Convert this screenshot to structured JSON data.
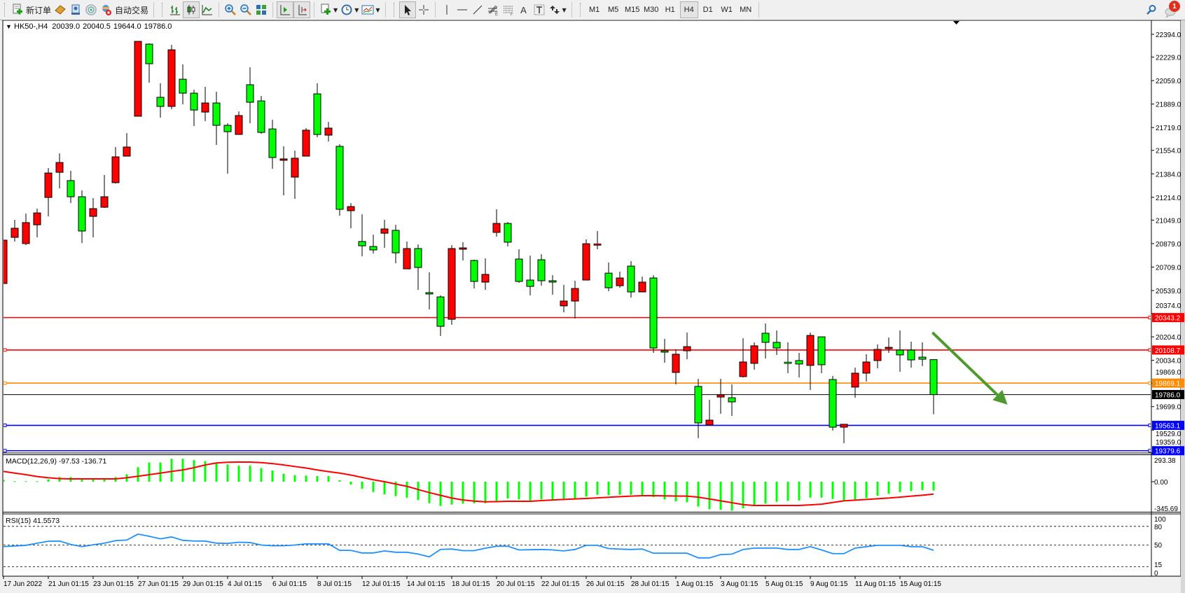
{
  "toolbar": {
    "new_order_label": "新订单",
    "autotrade_label": "自动交易",
    "icons": [
      "new-order-icon",
      "market-watch-icon",
      "navigator-icon",
      "signals-icon",
      "autotrade-icon",
      "bar-chart-icon",
      "candlestick-chart-icon",
      "line-chart-icon",
      "zoom-in-icon",
      "zoom-out-icon",
      "tile-windows-icon",
      "auto-scroll-icon",
      "chart-shift-icon",
      "indicators-icon",
      "periods-icon",
      "templates-icon",
      "cursor-icon",
      "crosshair-icon",
      "vertical-line-icon",
      "horizontal-line-icon",
      "trendline-icon",
      "fibonacci-icon",
      "fibonacci-fan-icon",
      "text-icon",
      "text-label-icon",
      "arrows-icon",
      "search-icon",
      "notifications-icon"
    ],
    "text_tool": "A",
    "timeframes": [
      "M1",
      "M5",
      "M15",
      "M30",
      "H1",
      "H4",
      "D1",
      "W1",
      "MN"
    ],
    "active_timeframe": "H4",
    "notification_count": "1"
  },
  "chart": {
    "symbol": "HK50-,H4",
    "open": "20039.0",
    "high": "20040.5",
    "low": "19644.0",
    "close": "19786.0"
  },
  "chart_data": {
    "type": "candlestick",
    "up_color": "#ff0000",
    "down_color": "#00ff00",
    "candles_ohlc": [
      [
        20590,
        20904,
        20590,
        20904
      ],
      [
        20924,
        21051,
        20894,
        20990
      ],
      [
        20879,
        21096,
        20868,
        21031
      ],
      [
        21015,
        21132,
        20924,
        21101
      ],
      [
        21213,
        21426,
        21076,
        21390
      ],
      [
        21395,
        21532,
        21279,
        21466
      ],
      [
        21335,
        21406,
        21172,
        21218
      ],
      [
        21218,
        21264,
        20883,
        20970
      ],
      [
        21076,
        21208,
        20924,
        21132
      ],
      [
        21142,
        21375,
        21137,
        21218
      ],
      [
        21320,
        21578,
        21314,
        21507
      ],
      [
        21512,
        21679,
        21512,
        21578
      ],
      [
        21801,
        22343,
        21801,
        22343
      ],
      [
        22323,
        22328,
        22044,
        22181
      ],
      [
        21938,
        22039,
        21791,
        21872
      ],
      [
        21872,
        22318,
        21852,
        22282
      ],
      [
        22069,
        22176,
        21887,
        21968
      ],
      [
        21968,
        21993,
        21730,
        21846
      ],
      [
        21831,
        22014,
        21765,
        21897
      ],
      [
        21897,
        21978,
        21593,
        21735
      ],
      [
        21735,
        21750,
        21385,
        21689
      ],
      [
        21669,
        21836,
        21669,
        21806
      ],
      [
        22029,
        22155,
        21750,
        21902
      ],
      [
        21912,
        21948,
        21674,
        21684
      ],
      [
        21709,
        21775,
        21421,
        21502
      ],
      [
        21482,
        21583,
        21228,
        21492
      ],
      [
        21360,
        21552,
        21203,
        21497
      ],
      [
        21512,
        21715,
        21512,
        21700
      ],
      [
        21963,
        22039,
        21649,
        21669
      ],
      [
        21664,
        21760,
        21618,
        21715
      ],
      [
        21583,
        21598,
        21081,
        21127
      ],
      [
        21117,
        21172,
        20990,
        21147
      ],
      [
        20894,
        21091,
        20787,
        20863
      ],
      [
        20858,
        20944,
        20807,
        20833
      ],
      [
        20954,
        21051,
        20848,
        20985
      ],
      [
        20975,
        21015,
        20736,
        20812
      ],
      [
        20696,
        20894,
        20696,
        20843
      ],
      [
        20843,
        20873,
        20544,
        20706
      ],
      [
        20524,
        20671,
        20402,
        20514
      ],
      [
        20493,
        20504,
        20210,
        20280
      ],
      [
        20331,
        20868,
        20291,
        20843
      ],
      [
        20838,
        20889,
        20757,
        20848
      ],
      [
        20757,
        20762,
        20554,
        20605
      ],
      [
        20600,
        20772,
        20544,
        20656
      ],
      [
        20960,
        21127,
        20929,
        21025
      ],
      [
        21025,
        21035,
        20858,
        20889
      ],
      [
        20767,
        20838,
        20595,
        20605
      ],
      [
        20615,
        20792,
        20504,
        20569
      ],
      [
        20762,
        20802,
        20574,
        20610
      ],
      [
        20610,
        20650,
        20509,
        20600
      ],
      [
        20428,
        20580,
        20382,
        20463
      ],
      [
        20463,
        20610,
        20337,
        20554
      ],
      [
        20615,
        20909,
        20615,
        20878
      ],
      [
        20868,
        20970,
        20838,
        20873
      ],
      [
        20665,
        20742,
        20534,
        20559
      ],
      [
        20574,
        20676,
        20559,
        20630
      ],
      [
        20716,
        20752,
        20488,
        20529
      ],
      [
        20529,
        20640,
        20529,
        20600
      ],
      [
        20630,
        20650,
        20088,
        20123
      ],
      [
        20103,
        20189,
        20017,
        20093
      ],
      [
        19946,
        20113,
        19860,
        20078
      ],
      [
        20103,
        20235,
        20042,
        20133
      ],
      [
        19845,
        19900,
        19470,
        19581
      ],
      [
        19566,
        19748,
        19566,
        19601
      ],
      [
        19768,
        19900,
        19647,
        19784
      ],
      [
        19763,
        19860,
        19632,
        19733
      ],
      [
        19916,
        20194,
        19910,
        20022
      ],
      [
        20012,
        20164,
        19966,
        20139
      ],
      [
        20230,
        20301,
        20047,
        20164
      ],
      [
        20164,
        20250,
        20073,
        20123
      ],
      [
        20017,
        20164,
        19941,
        20012
      ],
      [
        20032,
        20088,
        19910,
        20007
      ],
      [
        19997,
        20235,
        19819,
        20214
      ],
      [
        20204,
        20204,
        19941,
        20002
      ],
      [
        19895,
        19921,
        19525,
        19550
      ],
      [
        19550,
        19571,
        19434,
        19571
      ],
      [
        19840,
        19981,
        19763,
        19941
      ],
      [
        19941,
        20078,
        19880,
        20022
      ],
      [
        20032,
        20149,
        19976,
        20113
      ],
      [
        20118,
        20199,
        20088,
        20128
      ],
      [
        20108,
        20250,
        19951,
        20073
      ],
      [
        20108,
        20169,
        19981,
        20037
      ],
      [
        20057,
        20164,
        19992,
        20042
      ],
      [
        20039,
        20040.5,
        19644,
        19786
      ]
    ],
    "price_ticks": [
      "22394.0",
      "22229.0",
      "22059.0",
      "21889.0",
      "21719.0",
      "21554.0",
      "21384.0",
      "21214.0",
      "21049.0",
      "20879.0",
      "20709.0",
      "20539.0",
      "20374.0",
      "20204.0",
      "20034.0",
      "19869.0",
      "19699.0",
      "19529.0",
      "19359.0"
    ],
    "x_tick_labels": [
      {
        "bar": 0,
        "label": "17 Jun 2022"
      },
      {
        "bar": 4,
        "label": "21 Jun 01:15"
      },
      {
        "bar": 8,
        "label": "23 Jun 01:15"
      },
      {
        "bar": 12,
        "label": "27 Jun 01:15"
      },
      {
        "bar": 16,
        "label": "29 Jun 01:15"
      },
      {
        "bar": 20,
        "label": "4 Jul 01:15"
      },
      {
        "bar": 24,
        "label": "6 Jul 01:15"
      },
      {
        "bar": 28,
        "label": "8 Jul 01:15"
      },
      {
        "bar": 32,
        "label": "12 Jul 01:15"
      },
      {
        "bar": 36,
        "label": "14 Jul 01:15"
      },
      {
        "bar": 40,
        "label": "18 Jul 01:15"
      },
      {
        "bar": 44,
        "label": "20 Jul 01:15"
      },
      {
        "bar": 48,
        "label": "22 Jul 01:15"
      },
      {
        "bar": 52,
        "label": "26 Jul 01:15"
      },
      {
        "bar": 56,
        "label": "28 Jul 01:15"
      },
      {
        "bar": 60,
        "label": "1 Aug 01:15"
      },
      {
        "bar": 64,
        "label": "3 Aug 01:15"
      },
      {
        "bar": 68,
        "label": "5 Aug 01:15"
      },
      {
        "bar": 72,
        "label": "9 Aug 01:15"
      },
      {
        "bar": 76,
        "label": "11 Aug 01:15"
      },
      {
        "bar": 80,
        "label": "15 Aug 01:15"
      }
    ],
    "horizontal_lines": [
      {
        "price": "20343.2",
        "color": "#ff0000"
      },
      {
        "price": "20108.7",
        "color": "#ff0000"
      },
      {
        "price": "19869.1",
        "color": "#ff8c00"
      },
      {
        "price": "19563.1",
        "color": "#0000ff"
      },
      {
        "price": "19379.6",
        "color": "#0000ff"
      }
    ],
    "current_price": "19786.0",
    "arrow": {
      "color": "#4e9a2e",
      "from": {
        "bar": 82.9,
        "price": 20235
      },
      "to": {
        "bar": 89.6,
        "price": 19713
      }
    },
    "macd": {
      "label": "MACD(12,26,9) -97.53 -136.71",
      "axis_labels": [
        "293.38",
        "0.00",
        "-345.69"
      ],
      "range": [
        -345.69,
        293.38
      ],
      "histogram_color": "#00ff00",
      "signal_color": "#ff0000",
      "histogram": [
        21,
        5,
        5,
        5,
        26,
        51,
        51,
        26,
        26,
        26,
        51,
        82,
        159,
        211,
        211,
        252,
        252,
        237,
        226,
        211,
        190,
        175,
        175,
        149,
        123,
        87,
        72,
        67,
        62,
        62,
        15,
        -31,
        -77,
        -113,
        -139,
        -159,
        -175,
        -201,
        -237,
        -267,
        -252,
        -242,
        -237,
        -237,
        -211,
        -185,
        -195,
        -206,
        -195,
        -195,
        -190,
        -195,
        -165,
        -144,
        -149,
        -144,
        -144,
        -159,
        -170,
        -195,
        -216,
        -226,
        -273,
        -303,
        -309,
        -319,
        -293,
        -257,
        -242,
        -221,
        -211,
        -206,
        -175,
        -175,
        -190,
        -206,
        -195,
        -180,
        -154,
        -134,
        -113,
        -103,
        -93,
        -97.53
      ],
      "signal": [
        113,
        94,
        77,
        57,
        43,
        34,
        31,
        31,
        31,
        31,
        31,
        43,
        60,
        77,
        94,
        113,
        129,
        154,
        184,
        206,
        214,
        216,
        216,
        210,
        199,
        184,
        167,
        150,
        129,
        111,
        94,
        73,
        47,
        21,
        0,
        -26,
        -51,
        -86,
        -120,
        -150,
        -180,
        -201,
        -214,
        -221,
        -219,
        -216,
        -216,
        -216,
        -208,
        -201,
        -195,
        -190,
        -185,
        -178,
        -171,
        -165,
        -159,
        -154,
        -154,
        -156,
        -158,
        -159,
        -170,
        -190,
        -211,
        -231,
        -252,
        -262,
        -262,
        -262,
        -262,
        -262,
        -255,
        -247,
        -229,
        -211,
        -203,
        -195,
        -188,
        -180,
        -170,
        -159,
        -149,
        -136.71
      ]
    },
    "rsi": {
      "label": "RSI(15) 41.5573",
      "axis_labels": [
        "100",
        "80",
        "50",
        "15",
        "0"
      ],
      "levels": [
        80,
        50,
        15
      ],
      "color": "#1e90ff",
      "values": [
        47.5,
        48.5,
        49.5,
        53,
        56,
        56.4,
        51,
        47.5,
        50.4,
        53,
        57,
        58,
        67.5,
        64,
        60,
        63,
        57.5,
        56.5,
        56.4,
        53,
        52.6,
        54.5,
        54,
        50,
        48.9,
        48.9,
        50,
        52,
        51.9,
        51.9,
        41.4,
        41.4,
        37.3,
        37.3,
        40.6,
        38.4,
        38.4,
        35.5,
        31,
        43,
        43.6,
        41,
        41,
        45,
        48.1,
        48.1,
        42.1,
        42.5,
        42.9,
        42.1,
        40.6,
        42.9,
        49.6,
        49.6,
        44.4,
        43.5,
        42.9,
        43.6,
        36.9,
        36.9,
        36.9,
        36.9,
        29.4,
        29.4,
        34.7,
        35.4,
        42.9,
        45.1,
        45.1,
        45.1,
        42.9,
        42.9,
        47.4,
        42.1,
        36.2,
        36.2,
        45.1,
        47.4,
        49.6,
        49.6,
        49.6,
        47.4,
        47.4,
        41.5573
      ]
    }
  }
}
